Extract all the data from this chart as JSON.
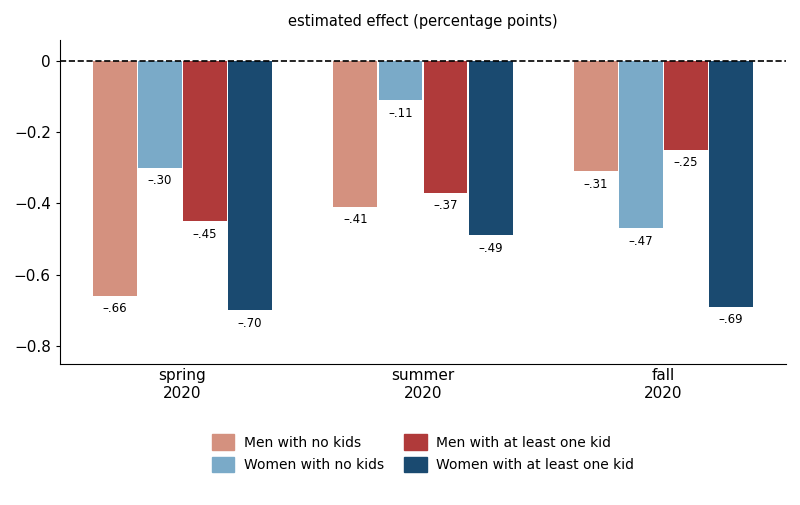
{
  "seasons": [
    "spring\n2020",
    "summer\n2020",
    "fall\n2020"
  ],
  "series_order": [
    "men_no_kids",
    "women_no_kids",
    "men_kids",
    "women_kids"
  ],
  "series": {
    "men_no_kids": [
      -0.66,
      -0.41,
      -0.31
    ],
    "men_kids": [
      -0.45,
      -0.37,
      -0.25
    ],
    "women_no_kids": [
      -0.3,
      -0.11,
      -0.47
    ],
    "women_kids": [
      -0.7,
      -0.49,
      -0.69
    ]
  },
  "colors": {
    "men_no_kids": "#d4917f",
    "men_kids": "#b03a3a",
    "women_no_kids": "#7aaac8",
    "women_kids": "#1a4a70"
  },
  "labels": {
    "men_no_kids": "Men with no kids",
    "men_kids": "Men with at least one kid",
    "women_no_kids": "Women with no kids",
    "women_kids": "Women with at least one kid"
  },
  "bar_labels": {
    "men_no_kids": [
      "–.66",
      "–.41",
      "–.31"
    ],
    "men_kids": [
      "–.45",
      "–.37",
      "–.25"
    ],
    "women_no_kids": [
      "–.30",
      "–.11",
      "–.47"
    ],
    "women_kids": [
      "–.70",
      "–.49",
      "–.69"
    ]
  },
  "title": "estimated effect (percentage points)",
  "ylim": [
    -0.85,
    0.06
  ],
  "yticks": [
    0,
    -0.2,
    -0.4,
    -0.6,
    -0.8
  ],
  "ytick_labels": [
    "0",
    "−0.2",
    "−0.4",
    "−0.6",
    "−0.8"
  ],
  "group_width": 0.75,
  "label_fontsize": 8.5,
  "title_fontsize": 10.5,
  "tick_fontsize": 11
}
